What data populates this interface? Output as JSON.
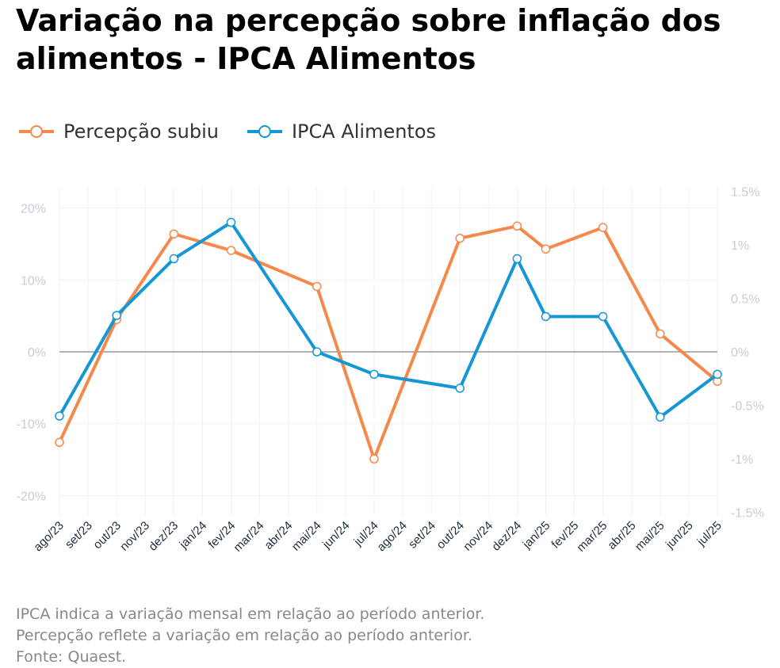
{
  "title": "Variação na percepção sobre inflação dos alimentos - IPCA Alimentos",
  "notes": [
    "IPCA indica a variação mensal em relação ao período anterior.",
    "Percepção reflete a variação em relação ao período anterior.",
    "Fonte: Quaest."
  ],
  "chart_data": {
    "type": "line",
    "title": "Variação na percepção sobre inflação dos alimentos - IPCA Alimentos",
    "legend_position": "top-left",
    "grid": true,
    "categories": [
      "ago/23",
      "set/23",
      "out/23",
      "nov/23",
      "dez/23",
      "jan/24",
      "fev/24",
      "mar/24",
      "abr/24",
      "mai/24",
      "jun/24",
      "jul/24",
      "ago/24",
      "set/24",
      "out/24",
      "nov/24",
      "dez/24",
      "jan/25",
      "fev/25",
      "mar/25",
      "abr/25",
      "mai/25",
      "jun/25",
      "jul/25"
    ],
    "y_left": {
      "ticks": [
        20,
        10,
        0,
        -10,
        -20
      ],
      "tick_labels": [
        "20%",
        "10%",
        "0%",
        "-10%",
        "-20%"
      ],
      "range": [
        -22.5,
        22.5
      ]
    },
    "y_right": {
      "ticks": [
        1.5,
        1,
        0.5,
        0,
        -0.5,
        -1,
        -1.5
      ],
      "tick_labels": [
        "1.5%",
        "1%",
        "0.5%",
        "0%",
        "-0.5%",
        "-1%",
        "-1.5%"
      ],
      "range": [
        -1.5,
        1.5
      ]
    },
    "series": [
      {
        "name": "Percepção subiu",
        "axis": "left",
        "color": "#f5894b",
        "values": [
          -12.6,
          null,
          4.5,
          null,
          16.4,
          null,
          14.1,
          null,
          null,
          9.1,
          null,
          -14.9,
          null,
          null,
          15.8,
          null,
          17.5,
          14.3,
          null,
          17.3,
          null,
          2.5,
          null,
          -4.1
        ]
      },
      {
        "name": "IPCA Alimentos",
        "axis": "right",
        "color": "#1497d4",
        "values": [
          -0.6,
          null,
          0.34,
          null,
          0.87,
          null,
          1.21,
          null,
          null,
          0,
          null,
          -0.21,
          null,
          null,
          -0.34,
          null,
          0.87,
          0.33,
          null,
          0.33,
          null,
          -0.61,
          null,
          -0.21
        ]
      }
    ]
  }
}
